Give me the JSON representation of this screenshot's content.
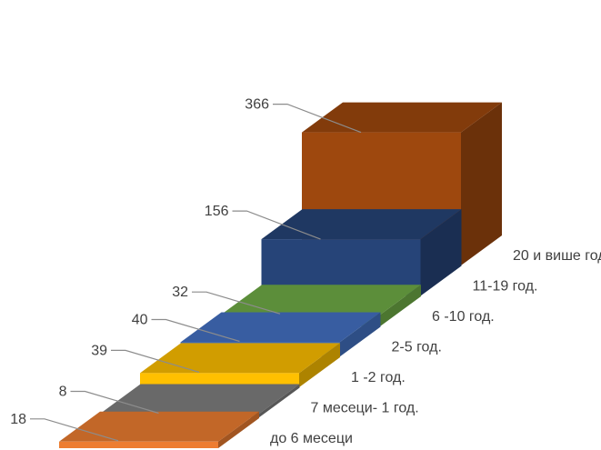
{
  "chart_data": {
    "type": "bar",
    "title": "",
    "xlabel": "",
    "ylabel": "",
    "categories": [
      "до 6 месеци",
      "7 месеци- 1 год.",
      "1 -2 год.",
      "2-5 год.",
      "6 -10 год.",
      "11-19 год.",
      "20 и више год."
    ],
    "values": [
      18,
      8,
      39,
      40,
      32,
      156,
      366
    ],
    "colors": [
      "#ED7D31",
      "#808080",
      "#FFC000",
      "#4472C4",
      "#70AD47",
      "#264478",
      "#9E480E"
    ],
    "ylim": [
      0,
      366
    ],
    "grid": false,
    "legend": "none"
  }
}
